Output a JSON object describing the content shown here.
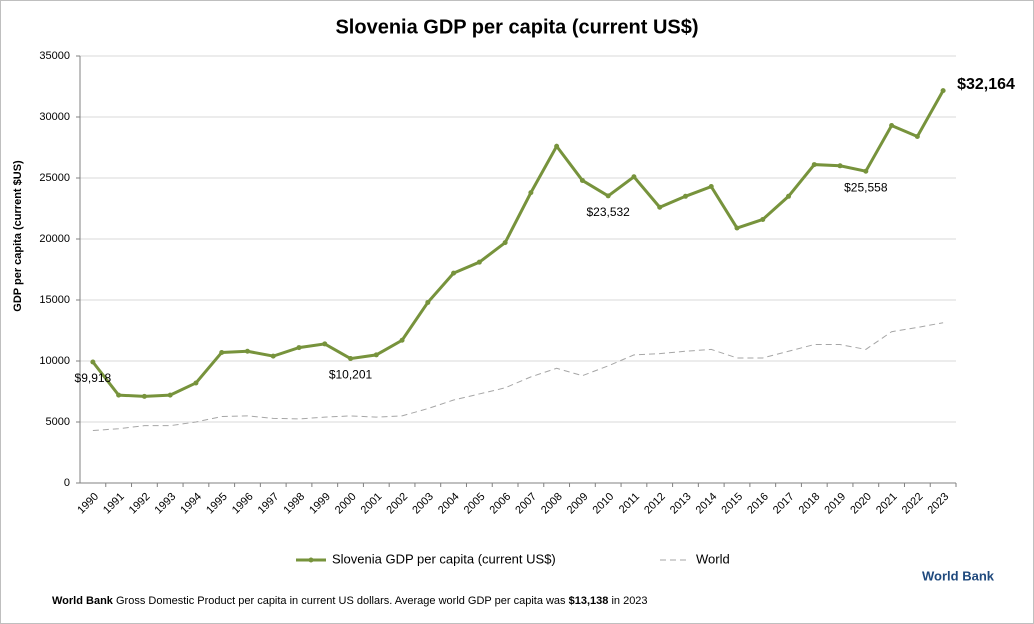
{
  "chart_data": {
    "type": "line",
    "title": "Slovenia GDP per capita (current US$)",
    "y_label": "GDP per capita (current $US)",
    "categories": [
      "1990",
      "1991",
      "1992",
      "1993",
      "1994",
      "1995",
      "1996",
      "1997",
      "1998",
      "1999",
      "2000",
      "2001",
      "2002",
      "2003",
      "2004",
      "2005",
      "2006",
      "2007",
      "2008",
      "2009",
      "2010",
      "2011",
      "2012",
      "2013",
      "2014",
      "2015",
      "2016",
      "2017",
      "2018",
      "2019",
      "2020",
      "2021",
      "2022",
      "2023"
    ],
    "series": [
      {
        "name": "Slovenia GDP per capita (current US$)",
        "color": "#77933c",
        "dashed": false,
        "markers": true,
        "values": [
          9918,
          7200,
          7100,
          7200,
          8200,
          10700,
          10800,
          10400,
          11100,
          11400,
          10201,
          10500,
          11700,
          14800,
          17200,
          18100,
          19700,
          23800,
          27600,
          24800,
          23532,
          25100,
          22600,
          23500,
          24300,
          20900,
          21600,
          23500,
          26100,
          26000,
          25558,
          29300,
          28400,
          32164
        ],
        "value_labels": [
          "$9,918",
          null,
          null,
          null,
          null,
          null,
          null,
          null,
          null,
          null,
          "$10,201",
          null,
          null,
          null,
          null,
          null,
          null,
          null,
          null,
          null,
          "$23,532",
          null,
          null,
          null,
          null,
          null,
          null,
          null,
          null,
          null,
          "$25,558",
          null,
          null,
          "$32,164"
        ]
      },
      {
        "name": "World",
        "color": "#a6a6a6",
        "dashed": true,
        "markers": false,
        "values": [
          4300,
          4450,
          4700,
          4700,
          5000,
          5450,
          5500,
          5300,
          5250,
          5400,
          5500,
          5400,
          5500,
          6100,
          6800,
          7300,
          7800,
          8700,
          9400,
          8800,
          9600,
          10500,
          10600,
          10800,
          10950,
          10250,
          10250,
          10800,
          11350,
          11350,
          10950,
          12400,
          12750,
          13138
        ]
      }
    ],
    "ylim": [
      0,
      35000
    ],
    "yticks": [
      0,
      5000,
      10000,
      15000,
      20000,
      25000,
      30000,
      35000
    ],
    "grid": true,
    "footer": {
      "source": "World Bank",
      "text": "Gross Domestic Product per capita in current US dollars.  Average world GDP per capita was",
      "highlight": "$13,138",
      "tail": "in 2023"
    },
    "brand": "World Bank"
  }
}
